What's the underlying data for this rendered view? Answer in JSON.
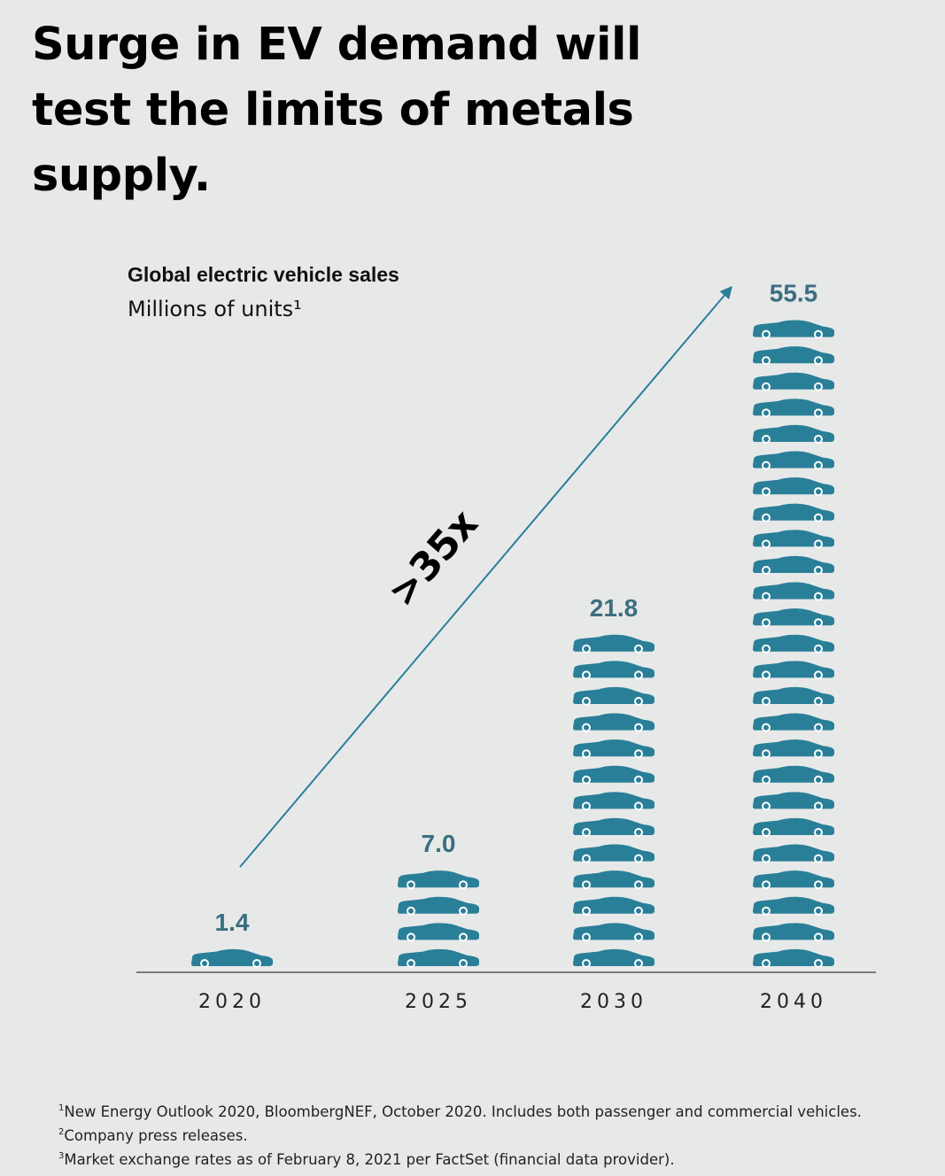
{
  "headline": "Surge in EV demand will test the limits of metals supply.",
  "chart_data": {
    "type": "bar",
    "title": "Global electric vehicle sales",
    "subtitle": "Millions of units¹",
    "categories": [
      "2020",
      "2025",
      "2030",
      "2040"
    ],
    "values": [
      1.4,
      7.0,
      21.8,
      55.5
    ],
    "value_labels": [
      "1.4",
      "7.0",
      "21.8",
      "55.5"
    ],
    "icon_counts": [
      1,
      4,
      13,
      25
    ],
    "annotation": ">35x",
    "bar_style": "stacked car icons",
    "colors": {
      "bar": "#2a7f98",
      "value_label": "#3b6f80",
      "arrow": "#2a7f98",
      "axis": "#555555"
    }
  },
  "footnotes": [
    {
      "mark": "1",
      "text": "New Energy Outlook 2020, BloombergNEF, October 2020. Includes both passenger and commercial vehicles."
    },
    {
      "mark": "2",
      "text": "Company press releases."
    },
    {
      "mark": "3",
      "text": "Market exchange rates as of February 8, 2021 per FactSet (financial data provider)."
    }
  ]
}
